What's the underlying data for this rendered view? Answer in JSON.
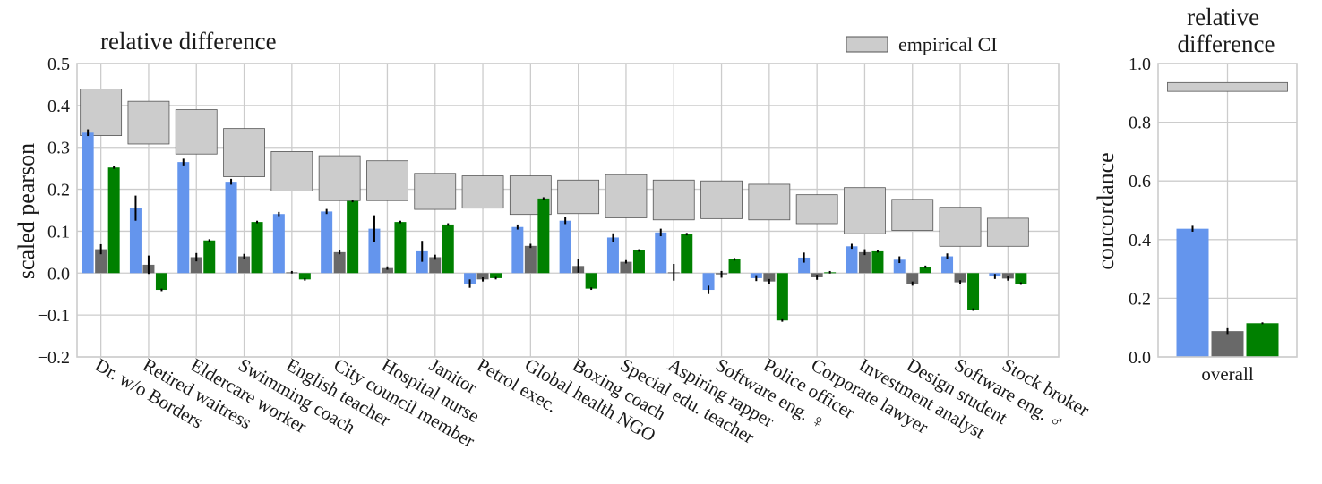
{
  "colors": {
    "series1": "#6495ed",
    "series2": "#696969",
    "series3": "#008000",
    "ci_fill": "#cccccc",
    "ci_stroke": "#555555",
    "grid": "#cccccc",
    "frame": "#cccccc"
  },
  "chart_data": [
    {
      "type": "bar",
      "title": "relative difference",
      "ylabel": "scaled pearson",
      "ylim": [
        -0.2,
        0.5
      ],
      "yticks": [
        "−0.2",
        "−0.1",
        "0.0",
        "0.1",
        "0.2",
        "0.3",
        "0.4",
        "0.5"
      ],
      "grid": true,
      "legend": {
        "placement": "top-right",
        "entries": [
          "empirical CI"
        ]
      },
      "categories": [
        "Dr. w/o Borders",
        "Retired waitress",
        "Eldercare worker",
        "Swimming coach",
        "English teacher",
        "City council member",
        "Hospital nurse",
        "Janitor",
        "Petrol exec.",
        "Global health NGO",
        "Boxing coach",
        "Special edu. teacher",
        "Aspiring rapper",
        "Software eng. ♀",
        "Police officer",
        "Corporate lawyer",
        "Investment analyst",
        "Design student",
        "Software eng. ♂",
        "Stock broker"
      ],
      "series": [
        {
          "values": [
            0.335,
            0.155,
            0.265,
            0.218,
            0.141,
            0.147,
            0.106,
            0.052,
            -0.025,
            0.11,
            0.125,
            0.085,
            0.097,
            -0.04,
            -0.012,
            0.037,
            0.064,
            0.032,
            0.04,
            -0.008
          ],
          "errors": [
            0.008,
            0.03,
            0.008,
            0.007,
            0.005,
            0.006,
            0.032,
            0.025,
            0.01,
            0.006,
            0.008,
            0.01,
            0.009,
            0.01,
            0.007,
            0.012,
            0.006,
            0.008,
            0.007,
            0.006
          ]
        },
        {
          "values": [
            0.057,
            0.02,
            0.038,
            0.04,
            0.002,
            0.05,
            0.012,
            0.038,
            -0.015,
            0.065,
            0.017,
            0.027,
            0.002,
            -0.003,
            -0.02,
            -0.01,
            0.05,
            -0.025,
            -0.022,
            -0.013
          ],
          "errors": [
            0.012,
            0.022,
            0.01,
            0.006,
            0.003,
            0.005,
            0.004,
            0.006,
            0.005,
            0.005,
            0.016,
            0.004,
            0.02,
            0.008,
            0.006,
            0.006,
            0.007,
            0.005,
            0.005,
            0.005
          ]
        },
        {
          "values": [
            0.252,
            -0.04,
            0.078,
            0.122,
            -0.015,
            0.172,
            0.122,
            0.116,
            -0.012,
            0.178,
            -0.037,
            0.054,
            0.093,
            0.033,
            -0.113,
            0.002,
            0.052,
            0.015,
            -0.087,
            -0.025
          ],
          "errors": [
            0.003,
            0.003,
            0.003,
            0.003,
            0.003,
            0.003,
            0.003,
            0.003,
            0.003,
            0.003,
            0.003,
            0.003,
            0.003,
            0.003,
            0.003,
            0.003,
            0.003,
            0.003,
            0.003,
            0.003
          ]
        }
      ],
      "empirical_ci": [
        [
          0.328,
          0.439
        ],
        [
          0.308,
          0.41
        ],
        [
          0.284,
          0.39
        ],
        [
          0.23,
          0.345
        ],
        [
          0.196,
          0.29
        ],
        [
          0.173,
          0.28
        ],
        [
          0.173,
          0.268
        ],
        [
          0.152,
          0.238
        ],
        [
          0.155,
          0.232
        ],
        [
          0.14,
          0.232
        ],
        [
          0.142,
          0.222
        ],
        [
          0.132,
          0.235
        ],
        [
          0.127,
          0.222
        ],
        [
          0.13,
          0.22
        ],
        [
          0.127,
          0.212
        ],
        [
          0.118,
          0.187
        ],
        [
          0.094,
          0.204
        ],
        [
          0.102,
          0.176
        ],
        [
          0.064,
          0.157
        ],
        [
          0.064,
          0.131
        ]
      ]
    },
    {
      "type": "bar",
      "title": "relative difference",
      "ylabel": "concordance",
      "ylim": [
        0.0,
        1.0
      ],
      "yticks": [
        "0.0",
        "0.2",
        "0.4",
        "0.6",
        "0.8",
        "1.0"
      ],
      "grid": true,
      "categories": [
        "overall"
      ],
      "series": [
        {
          "values": [
            0.437
          ],
          "errors": [
            0.01
          ]
        },
        {
          "values": [
            0.088
          ],
          "errors": [
            0.01
          ]
        },
        {
          "values": [
            0.115
          ],
          "errors": [
            0.003
          ]
        }
      ],
      "empirical_ci": [
        [
          0.905,
          0.935
        ]
      ]
    }
  ]
}
